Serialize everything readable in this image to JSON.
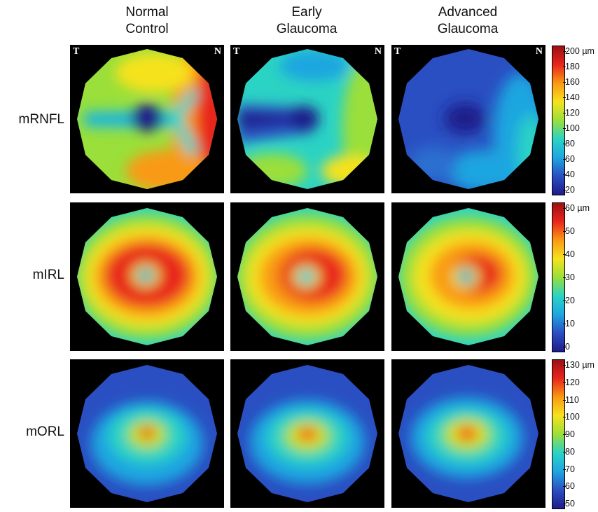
{
  "columns": [
    {
      "line1": "Normal",
      "line2": "Control"
    },
    {
      "line1": "Early",
      "line2": "Glaucoma"
    },
    {
      "line1": "Advanced",
      "line2": "Glaucoma"
    }
  ],
  "rows": [
    {
      "label": "mRNFL",
      "colorbar": {
        "ticks": [
          "200 µm",
          "180",
          "160",
          "140",
          "120",
          "100",
          "80",
          "60",
          "40",
          "20"
        ]
      }
    },
    {
      "label": "mIRL",
      "colorbar": {
        "ticks": [
          "60 µm",
          "50",
          "40",
          "30",
          "20",
          "10",
          "0"
        ]
      }
    },
    {
      "label": "mORL",
      "colorbar": {
        "ticks": [
          "130 µm",
          "120",
          "110",
          "100",
          "90",
          "80",
          "70",
          "60",
          "50"
        ]
      }
    }
  ],
  "corner_labels": {
    "temporal": "T",
    "nasal": "N"
  },
  "colormap": [
    "#1e1c8a",
    "#2a4fc2",
    "#1fa6e0",
    "#2bd3c4",
    "#9adf3a",
    "#f6e21e",
    "#f99a14",
    "#e8261c",
    "#9c0f12"
  ]
}
